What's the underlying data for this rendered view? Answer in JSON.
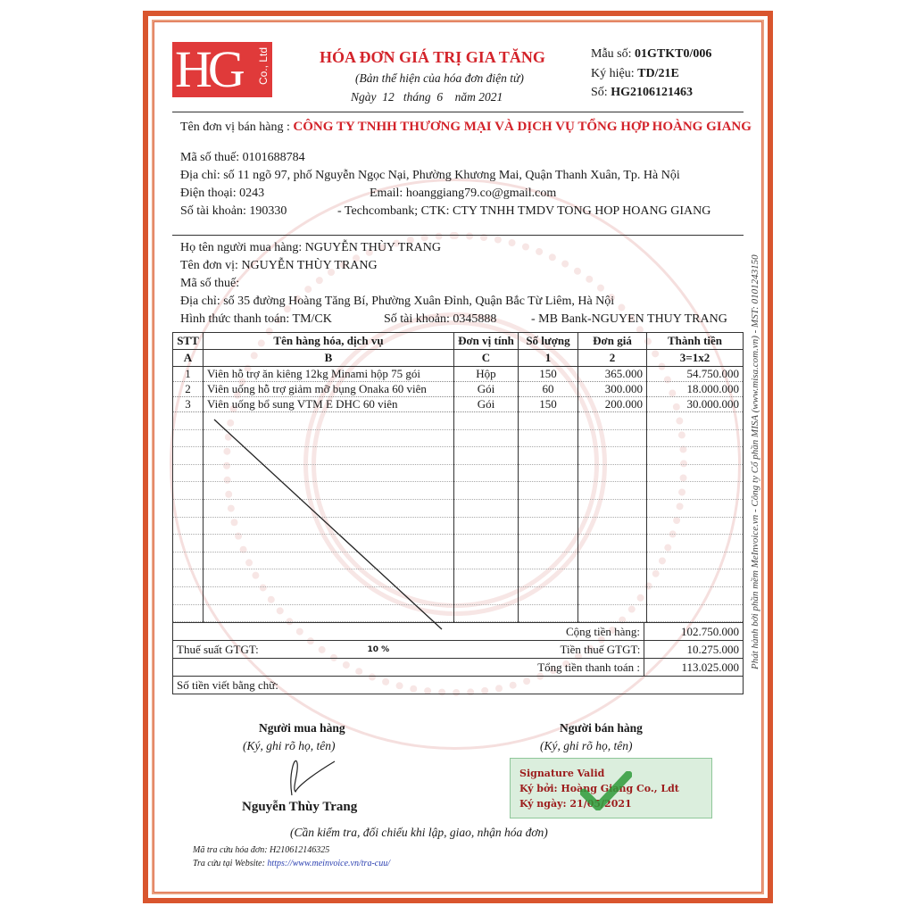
{
  "logo": {
    "letters": "HG",
    "suffix": "Co., Ltd"
  },
  "header": {
    "title": "HÓA ĐƠN GIÁ TRỊ GIA TĂNG",
    "subtitle": "(Bản thể hiện của hóa đơn điện tử)",
    "date": "Ngày  12   tháng  6    năm 2021",
    "form_label": "Mẫu số: ",
    "form_value": "01GTKT0/006",
    "symbol_label": "Ký hiệu: ",
    "symbol_value": "TD/21E",
    "number_label": "Số: ",
    "number_value": "HG2106121463"
  },
  "seller": {
    "name_label": "Tên đơn vị bán hàng : ",
    "name": "CÔNG TY TNHH THƯƠNG MẠI VÀ DỊCH VỤ TỔNG HỢP HOÀNG GIANG",
    "tax": "Mã số thuế: 0101688784",
    "address": "Địa chỉ: số 11 ngõ 97, phố Nguyễn Ngọc Nại, Phường Khương Mai, Quận Thanh Xuân, Tp. Hà Nội",
    "phone": "Điện thoại: 0243",
    "email": "Email: hoanggiang79.co@gmail.com",
    "account": "Số tài khoản: 190330",
    "account_rest": "- Techcombank; CTK: CTY TNHH TMDV TONG HOP HOANG GIANG"
  },
  "buyer": {
    "name": "Họ tên người mua hàng: NGUYỄN THÙY TRANG",
    "unit": "Tên đơn vị: NGUYỄN THÙY TRANG",
    "tax": "Mã số thuế:",
    "address": "Địa chỉ: số 35 đường Hoàng Tăng Bí, Phường Xuân Đỉnh, Quận Bắc Từ Liêm, Hà Nội",
    "payment": "Hình thức thanh toán: TM/CK",
    "account": "Số tài khoản: 0345888",
    "account_rest": "- MB Bank-NGUYEN THUY TRANG"
  },
  "table": {
    "headers": [
      "STT",
      "Tên hàng hóa, dịch vụ",
      "Đơn vị tính",
      "Số lượng",
      "Đơn giá",
      "Thành tiền"
    ],
    "codes": [
      "A",
      "B",
      "C",
      "1",
      "2",
      "3=1x2"
    ],
    "rows": [
      [
        "1",
        "Viên hỗ trợ ăn kiêng 12kg Minami hộp 75 gói",
        "Hộp",
        "150",
        "365.000",
        "54.750.000"
      ],
      [
        "2",
        "Viên uống hỗ trợ giảm mỡ bụng Onaka 60 viên",
        "Gói",
        "60",
        "300.000",
        "18.000.000"
      ],
      [
        "3",
        "Viên uống bổ sung VTM E DHC 60 viên",
        "Gói",
        "150",
        "200.000",
        "30.000.000"
      ]
    ]
  },
  "totals": {
    "subtotal_label": "Cộng tiền hàng:",
    "subtotal": "102.750.000",
    "vat_rate_label": "Thuế suất GTGT:",
    "vat_rate": "10 %",
    "vat_label": "Tiền thuế GTGT:",
    "vat": "10.275.000",
    "total_label": "Tổng tiền thanh toán :",
    "total": "113.025.000",
    "words_label": "Số tiền viết bằng chữ:"
  },
  "signatures": {
    "buyer_title": "Người mua hàng",
    "buyer_note": "(Ký, ghi rõ họ, tên)",
    "buyer_name": "Nguyễn Thùy Trang",
    "seller_title": "Người bán hàng",
    "seller_note": "(Ký, ghi rõ họ, tên)",
    "stamp_status": "Signature Valid",
    "stamp_by": "Ký bởi: Hoàng Giang Co., Ldt",
    "stamp_date": "Ký ngày: 21/05/2021"
  },
  "footer": {
    "note": "(Cần kiểm tra, đối chiếu khi lập, giao, nhận hóa đơn)",
    "lookup_code": "Mã tra cứu hóa đơn: H210612146325",
    "lookup_site_label": "Tra cứu tại Website: ",
    "lookup_url": "https://www.meinvoice.vn/tra-cuu/"
  },
  "side_text": "Phát hành bởi phần mềm MeInvoice.vn - Công ty Cổ phần MISA (www.misa.com.vn) - MST: 0101243150",
  "colors": {
    "frame": "#d9552e",
    "title": "#d3232a",
    "stamp_bg": "#dbeedd",
    "stamp_text": "#9c1b1b",
    "check": "#2e9a3a"
  }
}
